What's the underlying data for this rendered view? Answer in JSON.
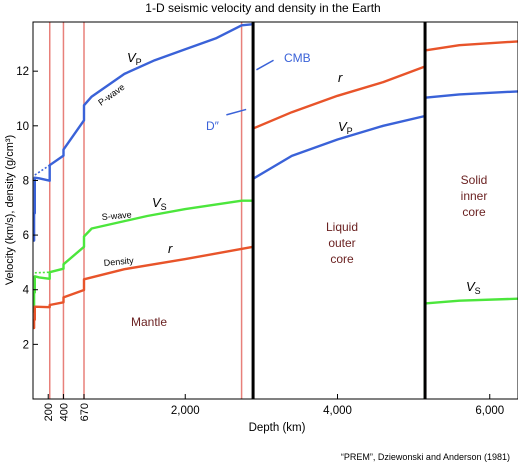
{
  "chart_data": {
    "type": "line",
    "title": "1-D seismic velocity and density in the Earth",
    "xlabel": "Depth (km)",
    "ylabel": "Velocity (km/s), density (g/cm³)",
    "xlim": [
      0,
      6371
    ],
    "ylim": [
      0,
      13.8
    ],
    "x_ticks": [
      {
        "value": 200,
        "label": "200",
        "rotated": true
      },
      {
        "value": 400,
        "label": "400",
        "rotated": true
      },
      {
        "value": 670,
        "label": "670",
        "rotated": true
      },
      {
        "value": 2000,
        "label": "2,000",
        "rotated": false
      },
      {
        "value": 4000,
        "label": "4,000",
        "rotated": false
      },
      {
        "value": 6000,
        "label": "6,000",
        "rotated": false
      }
    ],
    "y_ticks": [
      2,
      4,
      6,
      8,
      10,
      12
    ],
    "grid": false,
    "boundaries": {
      "thin": [
        {
          "x": 220
        },
        {
          "x": 400
        },
        {
          "x": 670
        },
        {
          "x": 2740
        }
      ],
      "thick": [
        {
          "x": 2891
        },
        {
          "x": 5150
        }
      ]
    },
    "colors": {
      "vp": "#3a62d8",
      "vs": "#4ce63c",
      "rho": "#e8542a",
      "boundary": "#e8807a",
      "axis": "#000000"
    },
    "series": [
      {
        "name": "Vp",
        "color": "#3a62d8",
        "points": [
          [
            0,
            5.8
          ],
          [
            15,
            5.8
          ],
          [
            15,
            6.8
          ],
          [
            24,
            6.8
          ],
          [
            24,
            8.1
          ],
          [
            80,
            8.08
          ],
          [
            220,
            7.99
          ],
          [
            220,
            8.56
          ],
          [
            400,
            8.91
          ],
          [
            400,
            9.13
          ],
          [
            670,
            10.2
          ],
          [
            670,
            10.75
          ],
          [
            771,
            11.07
          ],
          [
            1200,
            11.9
          ],
          [
            1600,
            12.4
          ],
          [
            2000,
            12.8
          ],
          [
            2400,
            13.2
          ],
          [
            2741,
            13.68
          ],
          [
            2891,
            13.72
          ],
          null,
          [
            2891,
            8.06
          ],
          [
            3400,
            8.9
          ],
          [
            4000,
            9.5
          ],
          [
            4600,
            10.0
          ],
          [
            5150,
            10.36
          ],
          null,
          [
            5150,
            11.03
          ],
          [
            5600,
            11.15
          ],
          [
            6371,
            11.26
          ]
        ]
      },
      {
        "name": "Vs",
        "color": "#4ce63c",
        "points": [
          [
            0,
            3.2
          ],
          [
            15,
            3.2
          ],
          [
            15,
            3.9
          ],
          [
            24,
            3.9
          ],
          [
            24,
            4.49
          ],
          [
            80,
            4.45
          ],
          [
            220,
            4.4
          ],
          [
            220,
            4.64
          ],
          [
            400,
            4.77
          ],
          [
            400,
            4.93
          ],
          [
            670,
            5.57
          ],
          [
            670,
            5.95
          ],
          [
            771,
            6.24
          ],
          [
            1500,
            6.7
          ],
          [
            2000,
            6.95
          ],
          [
            2741,
            7.26
          ],
          [
            2891,
            7.26
          ],
          null,
          [
            5150,
            0.0
          ],
          [
            5150,
            3.5
          ],
          [
            5600,
            3.6
          ],
          [
            6371,
            3.67
          ]
        ]
      },
      {
        "name": "rho",
        "color": "#e8542a",
        "points": [
          [
            0,
            2.6
          ],
          [
            15,
            2.6
          ],
          [
            15,
            2.9
          ],
          [
            24,
            2.9
          ],
          [
            24,
            3.38
          ],
          [
            220,
            3.36
          ],
          [
            220,
            3.44
          ],
          [
            400,
            3.54
          ],
          [
            400,
            3.72
          ],
          [
            670,
            3.99
          ],
          [
            670,
            4.38
          ],
          [
            1200,
            4.75
          ],
          [
            2000,
            5.12
          ],
          [
            2891,
            5.57
          ],
          null,
          [
            2891,
            9.9
          ],
          [
            3400,
            10.5
          ],
          [
            4000,
            11.1
          ],
          [
            4600,
            11.6
          ],
          [
            5150,
            12.17
          ],
          null,
          [
            5150,
            12.76
          ],
          [
            5600,
            12.95
          ],
          [
            6371,
            13.09
          ]
        ]
      }
    ],
    "dashes": [
      {
        "color": "#3a62d8",
        "x": [
          24,
          220
        ],
        "y": [
          8.2,
          8.56
        ]
      },
      {
        "color": "#4ce63c",
        "x": [
          24,
          220
        ],
        "y": [
          4.62,
          4.64
        ]
      }
    ],
    "d_line": {
      "color": "#3a62d8",
      "x": [
        2540,
        2800
      ],
      "y": [
        10.4,
        10.6
      ]
    },
    "cmb_line": {
      "color": "#3a62d8",
      "x": [
        2935,
        3160
      ],
      "y": [
        12.05,
        12.4
      ]
    },
    "annotations": {
      "vp_mantle": "V",
      "vp_sub": "P",
      "vp_outer": "V",
      "vp_outer_sub": "P",
      "vs_mantle": "V",
      "vs_sub": "S",
      "vs_inner": "V",
      "vs_inner_sub": "S",
      "r_mantle": "r",
      "r_core": "r",
      "p_wave": "P-wave",
      "s_wave": "S-wave",
      "density": "Density",
      "cmb": "CMB",
      "d_pp": "D″",
      "mantle": "Mantle",
      "outer_core": [
        "Liquid",
        "outer",
        "core"
      ],
      "inner_core": [
        "Solid",
        "inner",
        "core"
      ]
    },
    "citation": "“PREM”, Dziewonski and Anderson (1981)"
  }
}
